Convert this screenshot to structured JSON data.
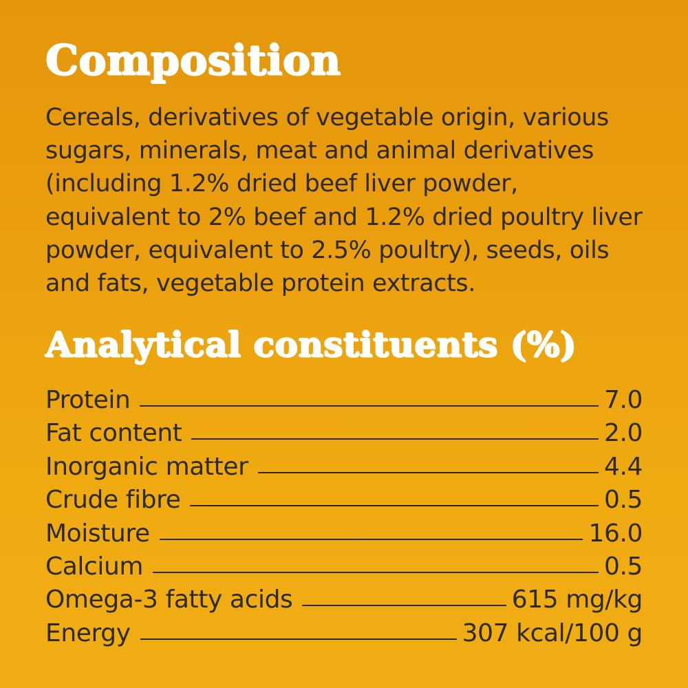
{
  "composition": {
    "title": "Composition",
    "lines": [
      "Cereals, derivatives of vegetable origin, various",
      "sugars, minerals, meat and animal derivatives",
      "(including 1.2% dried beef liver powder,",
      "equivalent to 2% beef and 1.2% dried poultry liver",
      "powder, equivalent to 2.5% poultry), seeds, oils",
      "and fats, vegetable protein extracts."
    ]
  },
  "analytical": {
    "title": "Analytical constituents (%)",
    "rows": [
      {
        "name": "Protein",
        "value": "7.0"
      },
      {
        "name": "Fat content",
        "value": "2.0"
      },
      {
        "name": "Inorganic matter",
        "value": "4.4"
      },
      {
        "name": "Crude fibre",
        "value": "0.5"
      },
      {
        "name": "Moisture",
        "value": "16.0"
      },
      {
        "name": "Calcium",
        "value": "0.5"
      },
      {
        "name": "Omega-3 fatty acids",
        "value": "615 mg/kg"
      },
      {
        "name": "Energy",
        "value": "307 kcal/100 g"
      }
    ]
  },
  "colors": {
    "background_top": "#e5960c",
    "background_bottom": "#f0ae14",
    "heading": "#ffffff",
    "text": "#2e2a22"
  }
}
